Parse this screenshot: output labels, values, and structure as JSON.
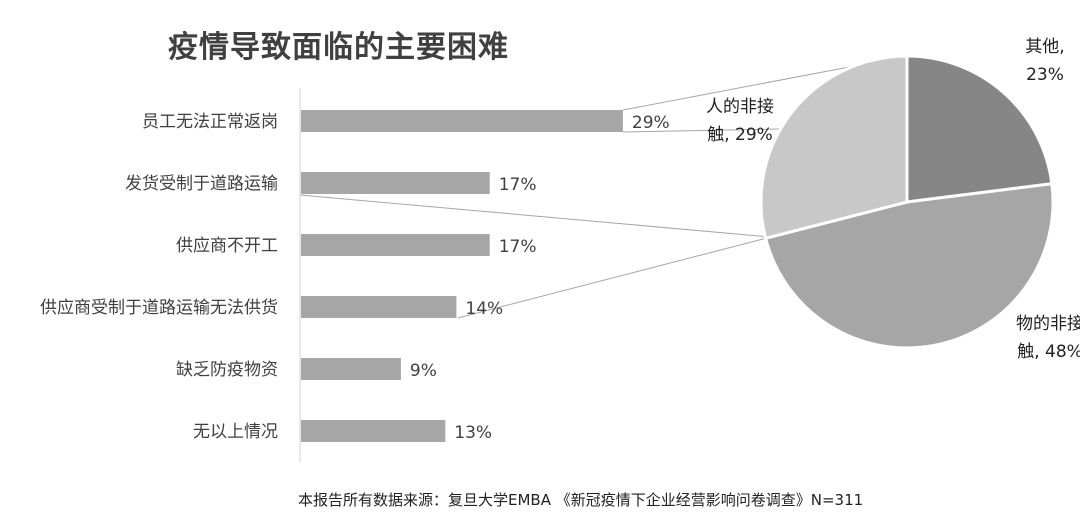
{
  "chart_data": [
    {
      "type": "bar",
      "title": "疫情导致面临的主要困难",
      "orientation": "horizontal",
      "categories": [
        "员工无法正常返岗",
        "发货受制于道路运输",
        "供应商不开工",
        "供应商受制于道路运输无法供货",
        "缺乏防疫物资",
        "无以上情况"
      ],
      "values": [
        29,
        17,
        17,
        14,
        9,
        13
      ],
      "value_labels": [
        "29%",
        "17%",
        "17%",
        "14%",
        "9%",
        "13%"
      ],
      "unit": "%",
      "xlim": [
        0,
        45
      ],
      "bar_color": "#a6a6a6"
    },
    {
      "type": "pie",
      "slices": [
        {
          "name": "其他",
          "value": 23,
          "label_lines": [
            "其他,",
            "23%"
          ],
          "color": "#868686"
        },
        {
          "name": "物的非接触",
          "value": 48,
          "label_lines": [
            "物的非接",
            "触, 48%"
          ],
          "color": "#a6a6a6"
        },
        {
          "name": "人的非接触",
          "value": 29,
          "label_lines": [
            "人的非接",
            "触, 29%"
          ],
          "color": "#c8c8c8"
        }
      ],
      "breakout_of": "员工无法正常返岗"
    }
  ],
  "source_note": "本报告所有数据来源：复旦大学EMBA 《新冠疫情下企业经营影响问卷调查》N=311"
}
